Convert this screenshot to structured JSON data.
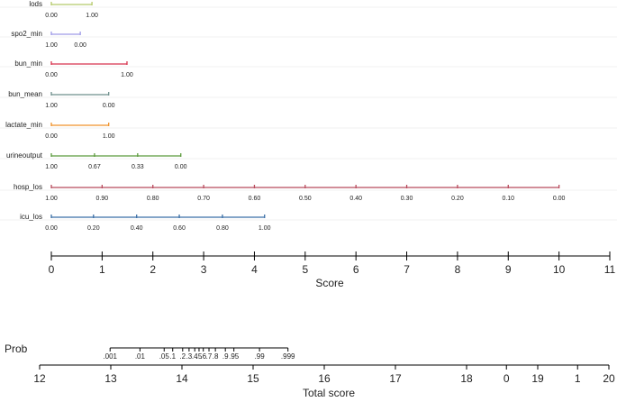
{
  "chart_data": {
    "type": "nomogram",
    "variables": [
      {
        "name": "lods",
        "color": "#b5c96a",
        "ticks": [
          {
            "value": 0,
            "label": "0.00",
            "points": 0
          },
          {
            "value": 1,
            "label": "1.00",
            "points": 0.8
          }
        ]
      },
      {
        "name": "spo2_min",
        "color": "#9f9be6",
        "ticks": [
          {
            "value": 1,
            "label": "1.00",
            "points": 0
          },
          {
            "value": 0,
            "label": "0.00",
            "points": 0.57
          }
        ]
      },
      {
        "name": "bun_min",
        "color": "#d8324c",
        "ticks": [
          {
            "value": 0,
            "label": "0.00",
            "points": 0
          },
          {
            "value": 1,
            "label": "1.00",
            "points": 1.49
          }
        ]
      },
      {
        "name": "bun_mean",
        "color": "#6e8f8c",
        "ticks": [
          {
            "value": 1,
            "label": "1.00",
            "points": 0
          },
          {
            "value": 0,
            "label": "0.00",
            "points": 1.13
          }
        ]
      },
      {
        "name": "lactate_min",
        "color": "#f0922a",
        "ticks": [
          {
            "value": 0,
            "label": "0.00",
            "points": 0
          },
          {
            "value": 1,
            "label": "1.00",
            "points": 1.13
          }
        ]
      },
      {
        "name": "urineoutput",
        "color": "#5b9a3c",
        "ticks": [
          {
            "value": 1,
            "label": "1.00",
            "points": 0
          },
          {
            "value": 0.67,
            "label": "0.67",
            "points": 0.85
          },
          {
            "value": 0.33,
            "label": "0.33",
            "points": 1.7
          },
          {
            "value": 0,
            "label": "0.00",
            "points": 2.55
          }
        ]
      },
      {
        "name": "hosp_los",
        "color": "#b84a5c",
        "ticks": [
          {
            "value": 1,
            "label": "1.00",
            "points": 0
          },
          {
            "value": 0.9,
            "label": "0.90",
            "points": 1
          },
          {
            "value": 0.8,
            "label": "0.80",
            "points": 2
          },
          {
            "value": 0.7,
            "label": "0.70",
            "points": 3
          },
          {
            "value": 0.6,
            "label": "0.60",
            "points": 4
          },
          {
            "value": 0.5,
            "label": "0.50",
            "points": 5
          },
          {
            "value": 0.4,
            "label": "0.40",
            "points": 6
          },
          {
            "value": 0.3,
            "label": "0.30",
            "points": 7
          },
          {
            "value": 0.2,
            "label": "0.20",
            "points": 8
          },
          {
            "value": 0.1,
            "label": "0.10",
            "points": 9
          },
          {
            "value": 0,
            "label": "0.00",
            "points": 10
          }
        ]
      },
      {
        "name": "icu_los",
        "color": "#3b6fa6",
        "ticks": [
          {
            "value": 0,
            "label": "0.00",
            "points": 0
          },
          {
            "value": 0.2,
            "label": "0.20",
            "points": 0.83
          },
          {
            "value": 0.4,
            "label": "0.40",
            "points": 1.68
          },
          {
            "value": 0.6,
            "label": "0.60",
            "points": 2.52
          },
          {
            "value": 0.8,
            "label": "0.80",
            "points": 3.37
          },
          {
            "value": 1,
            "label": "1.00",
            "points": 4.2
          }
        ]
      }
    ],
    "score_axis": {
      "xlabel": "Score",
      "xlim": [
        0,
        11
      ],
      "xticks": [
        0,
        1,
        2,
        3,
        4,
        5,
        6,
        7,
        8,
        9,
        10,
        11
      ]
    },
    "prob_axis": {
      "label": "Prob",
      "ticks": [
        {
          "value": 0.001,
          "label": ".001",
          "total": 12.99
        },
        {
          "value": 0.01,
          "label": ".01",
          "total": 13.41
        },
        {
          "value": 0.05,
          "label": ".05",
          "total": 13.75
        },
        {
          "value": 0.1,
          "label": ".1",
          "total": 13.87
        },
        {
          "value": 0.2,
          "label": ".2",
          "total": 14.01
        },
        {
          "value": 0.3,
          "label": ".3",
          "total": 14.1
        },
        {
          "value": 0.4,
          "label": ".4",
          "total": 14.18
        },
        {
          "value": 0.5,
          "label": ".5",
          "total": 14.24
        },
        {
          "value": 0.6,
          "label": ".6",
          "total": 14.3
        },
        {
          "value": 0.7,
          "label": ".7",
          "total": 14.38
        },
        {
          "value": 0.8,
          "label": ".8",
          "total": 14.47
        },
        {
          "value": 0.9,
          "label": ".9",
          "total": 14.61
        },
        {
          "value": 0.95,
          "label": ".95",
          "total": 14.73
        },
        {
          "value": 0.99,
          "label": ".99",
          "total": 15.09
        },
        {
          "value": 0.999,
          "label": ".999",
          "total": 15.49
        }
      ]
    },
    "total_axis": {
      "xlabel": "Total score",
      "xlim": [
        12,
        20
      ],
      "xticks": [
        12,
        13,
        14,
        15,
        16,
        17,
        18,
        19,
        20
      ],
      "overlay": {
        "xlim": [
          -6.56,
          1.44
        ],
        "xticks": [
          0,
          1
        ]
      }
    }
  }
}
